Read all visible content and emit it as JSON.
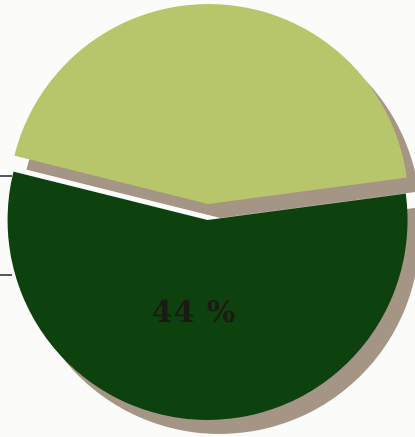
{
  "chart_data": {
    "type": "pie",
    "title": "",
    "slices": [
      {
        "label": "",
        "value": 56,
        "color": "#0d420f"
      },
      {
        "label": "44 %",
        "value": 44,
        "color": "#b7c66a"
      }
    ],
    "shadow_color": "#a59584",
    "legend": "none"
  }
}
